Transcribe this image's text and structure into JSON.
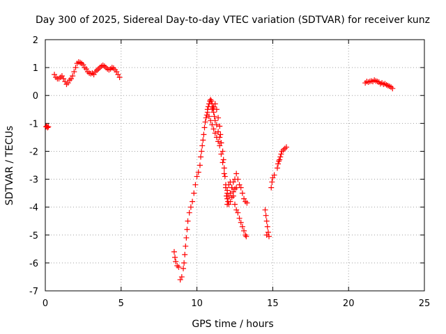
{
  "chart_data": {
    "type": "scatter",
    "title": "Day 300 of 2025, Sidereal Day-to-day VTEC variation (SDTVAR) for receiver kunz",
    "xlabel": "GPS time / hours",
    "ylabel": "SDTVAR / TECUs",
    "xlim": [
      0,
      25
    ],
    "ylim": [
      -7,
      2
    ],
    "xticks": [
      0,
      5,
      10,
      15,
      20,
      25
    ],
    "yticks": [
      -7,
      -6,
      -5,
      -4,
      -3,
      -2,
      -1,
      0,
      1,
      2
    ],
    "grid": true,
    "marker": "+",
    "color": "#ff0000",
    "series": [
      {
        "name": "SDTVAR",
        "points": [
          [
            0.05,
            -1.12
          ],
          [
            0.1,
            -1.1
          ],
          [
            0.15,
            -1.15
          ],
          [
            0.2,
            -1.12
          ],
          [
            0.6,
            0.75
          ],
          [
            0.7,
            0.65
          ],
          [
            0.8,
            0.6
          ],
          [
            0.9,
            0.6
          ],
          [
            1.0,
            0.65
          ],
          [
            1.1,
            0.7
          ],
          [
            1.2,
            0.6
          ],
          [
            1.3,
            0.5
          ],
          [
            1.4,
            0.4
          ],
          [
            1.5,
            0.45
          ],
          [
            1.6,
            0.55
          ],
          [
            1.7,
            0.6
          ],
          [
            1.8,
            0.7
          ],
          [
            1.9,
            0.85
          ],
          [
            2.0,
            1.0
          ],
          [
            2.1,
            1.15
          ],
          [
            2.2,
            1.2
          ],
          [
            2.3,
            1.18
          ],
          [
            2.4,
            1.15
          ],
          [
            2.5,
            1.1
          ],
          [
            2.6,
            1.0
          ],
          [
            2.7,
            0.95
          ],
          [
            2.8,
            0.85
          ],
          [
            2.9,
            0.8
          ],
          [
            3.0,
            0.78
          ],
          [
            3.1,
            0.8
          ],
          [
            3.2,
            0.75
          ],
          [
            3.3,
            0.85
          ],
          [
            3.4,
            0.9
          ],
          [
            3.5,
            0.95
          ],
          [
            3.6,
            1.0
          ],
          [
            3.7,
            1.05
          ],
          [
            3.8,
            1.08
          ],
          [
            3.9,
            1.05
          ],
          [
            4.0,
            1.0
          ],
          [
            4.1,
            0.95
          ],
          [
            4.2,
            0.92
          ],
          [
            4.3,
            0.95
          ],
          [
            4.4,
            1.0
          ],
          [
            4.5,
            0.98
          ],
          [
            4.6,
            0.92
          ],
          [
            4.7,
            0.85
          ],
          [
            4.8,
            0.75
          ],
          [
            4.9,
            0.65
          ],
          [
            8.5,
            -5.6
          ],
          [
            8.55,
            -5.8
          ],
          [
            8.6,
            -5.95
          ],
          [
            8.7,
            -6.1
          ],
          [
            8.8,
            -6.15
          ],
          [
            8.9,
            -6.6
          ],
          [
            9.0,
            -6.5
          ],
          [
            9.1,
            -6.2
          ],
          [
            9.15,
            -6.0
          ],
          [
            9.2,
            -5.7
          ],
          [
            9.25,
            -5.4
          ],
          [
            9.3,
            -5.1
          ],
          [
            9.35,
            -4.8
          ],
          [
            9.4,
            -4.5
          ],
          [
            9.5,
            -4.2
          ],
          [
            9.6,
            -4.0
          ],
          [
            9.7,
            -3.8
          ],
          [
            9.8,
            -3.5
          ],
          [
            9.9,
            -3.2
          ],
          [
            10.0,
            -2.9
          ],
          [
            10.1,
            -2.75
          ],
          [
            10.2,
            -2.5
          ],
          [
            10.25,
            -2.2
          ],
          [
            10.3,
            -2.0
          ],
          [
            10.35,
            -1.8
          ],
          [
            10.4,
            -1.6
          ],
          [
            10.45,
            -1.4
          ],
          [
            10.5,
            -1.15
          ],
          [
            10.55,
            -0.95
          ],
          [
            10.6,
            -0.8
          ],
          [
            10.65,
            -0.7
          ],
          [
            10.7,
            -0.5
          ],
          [
            10.75,
            -0.4
          ],
          [
            10.8,
            -0.3
          ],
          [
            10.85,
            -0.2
          ],
          [
            10.9,
            -0.15
          ],
          [
            10.95,
            -0.2
          ],
          [
            11.0,
            -0.3
          ],
          [
            11.05,
            -0.45
          ],
          [
            11.1,
            -0.6
          ],
          [
            11.15,
            -0.75
          ],
          [
            11.2,
            -0.9
          ],
          [
            11.3,
            -1.05
          ],
          [
            11.4,
            -1.3
          ],
          [
            11.5,
            -1.5
          ],
          [
            11.6,
            -1.7
          ],
          [
            11.7,
            -2.0
          ],
          [
            11.75,
            -2.3
          ],
          [
            11.8,
            -2.6
          ],
          [
            11.85,
            -2.9
          ],
          [
            11.9,
            -3.3
          ],
          [
            11.95,
            -3.6
          ],
          [
            12.0,
            -3.9
          ],
          [
            10.7,
            -0.6
          ],
          [
            10.8,
            -0.75
          ],
          [
            10.9,
            -0.9
          ],
          [
            11.0,
            -1.05
          ],
          [
            11.1,
            -1.2
          ],
          [
            11.2,
            -1.35
          ],
          [
            11.3,
            -1.5
          ],
          [
            11.4,
            -1.65
          ],
          [
            11.5,
            -1.8
          ],
          [
            11.6,
            -2.1
          ],
          [
            11.7,
            -2.4
          ],
          [
            11.8,
            -2.8
          ],
          [
            11.9,
            -3.2
          ],
          [
            12.0,
            -3.5
          ],
          [
            12.05,
            -3.8
          ],
          [
            11.0,
            -0.5
          ],
          [
            11.1,
            -0.4
          ],
          [
            11.2,
            -0.3
          ],
          [
            11.3,
            -0.5
          ],
          [
            11.4,
            -0.8
          ],
          [
            11.5,
            -1.1
          ],
          [
            11.55,
            -1.4
          ],
          [
            11.6,
            -1.7
          ],
          [
            12.0,
            -3.4
          ],
          [
            12.1,
            -3.6
          ],
          [
            12.2,
            -3.5
          ],
          [
            12.3,
            -3.3
          ],
          [
            12.4,
            -3.1
          ],
          [
            12.5,
            -3.0
          ],
          [
            12.6,
            -2.8
          ],
          [
            12.7,
            -3.0
          ],
          [
            12.8,
            -3.2
          ],
          [
            12.9,
            -3.3
          ],
          [
            13.0,
            -3.5
          ],
          [
            13.1,
            -3.7
          ],
          [
            13.2,
            -3.8
          ],
          [
            13.3,
            -3.85
          ],
          [
            12.1,
            -3.2
          ],
          [
            12.2,
            -3.1
          ],
          [
            12.3,
            -3.3
          ],
          [
            12.4,
            -3.6
          ],
          [
            12.5,
            -3.9
          ],
          [
            12.6,
            -4.1
          ],
          [
            12.7,
            -4.2
          ],
          [
            12.8,
            -4.4
          ],
          [
            12.9,
            -4.55
          ],
          [
            13.0,
            -4.7
          ],
          [
            13.1,
            -4.85
          ],
          [
            13.2,
            -5.0
          ],
          [
            13.25,
            -5.05
          ],
          [
            12.0,
            -3.7
          ],
          [
            12.1,
            -3.9
          ],
          [
            12.2,
            -3.8
          ],
          [
            12.3,
            -3.65
          ],
          [
            12.4,
            -3.45
          ],
          [
            12.5,
            -3.35
          ],
          [
            12.6,
            -3.3
          ],
          [
            14.5,
            -4.1
          ],
          [
            14.55,
            -4.3
          ],
          [
            14.6,
            -4.5
          ],
          [
            14.65,
            -4.7
          ],
          [
            14.7,
            -4.9
          ],
          [
            14.75,
            -5.05
          ],
          [
            14.6,
            -5.0
          ],
          [
            14.9,
            -3.3
          ],
          [
            14.95,
            -3.1
          ],
          [
            15.0,
            -2.95
          ],
          [
            15.1,
            -2.85
          ],
          [
            15.3,
            -2.6
          ],
          [
            15.35,
            -2.45
          ],
          [
            15.4,
            -2.35
          ],
          [
            15.45,
            -2.3
          ],
          [
            15.5,
            -2.2
          ],
          [
            15.55,
            -2.1
          ],
          [
            15.6,
            -2.0
          ],
          [
            15.7,
            -1.95
          ],
          [
            15.8,
            -1.9
          ],
          [
            15.9,
            -1.85
          ],
          [
            21.1,
            0.45
          ],
          [
            21.2,
            0.5
          ],
          [
            21.3,
            0.48
          ],
          [
            21.4,
            0.5
          ],
          [
            21.5,
            0.52
          ],
          [
            21.6,
            0.5
          ],
          [
            21.7,
            0.55
          ],
          [
            21.8,
            0.52
          ],
          [
            21.9,
            0.5
          ],
          [
            22.0,
            0.48
          ],
          [
            22.1,
            0.42
          ],
          [
            22.2,
            0.45
          ],
          [
            22.3,
            0.4
          ],
          [
            22.4,
            0.42
          ],
          [
            22.5,
            0.38
          ],
          [
            22.6,
            0.35
          ],
          [
            22.7,
            0.33
          ],
          [
            22.8,
            0.3
          ],
          [
            22.9,
            0.25
          ]
        ]
      }
    ]
  }
}
